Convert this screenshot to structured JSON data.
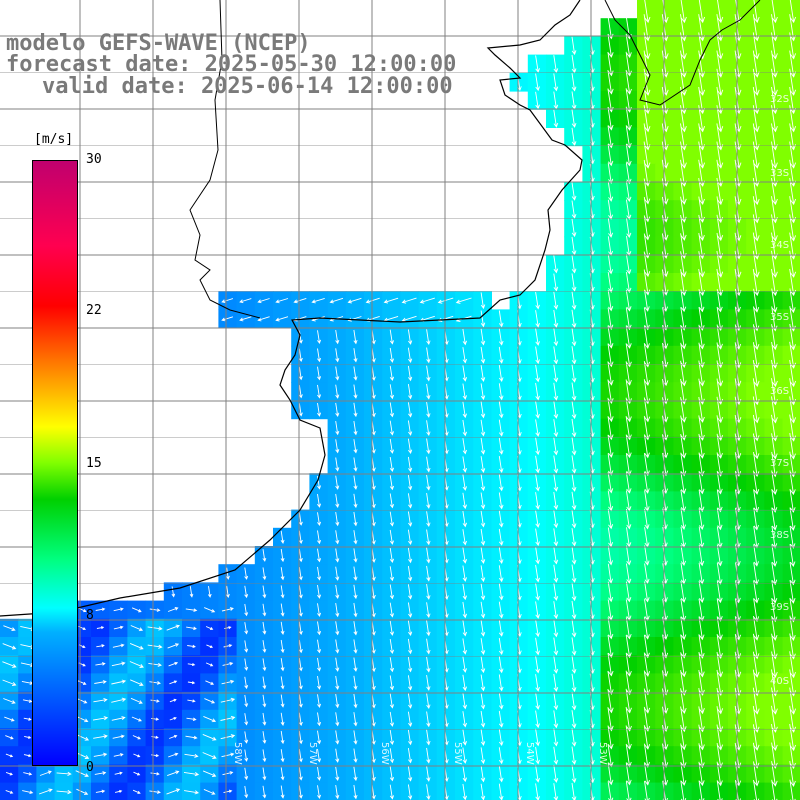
{
  "title": {
    "model": "modelo GEFS-WAVE (NCEP)",
    "forecast": "forecast date: 2025-05-30 12:00:00",
    "valid": "valid date: 2025-06-14 12:00:00"
  },
  "colorbar": {
    "unit": "[m/s]",
    "ticks": [
      "30",
      "22",
      "15",
      "8",
      "0"
    ]
  },
  "lat_labels": [
    "32S",
    "33S",
    "34S",
    "35S",
    "36S",
    "37S",
    "38S",
    "39S",
    "40S"
  ],
  "lon_labels": [
    "58W",
    "57W",
    "56W",
    "55W",
    "54W",
    "53W"
  ],
  "colors": {
    "land": "#ffffff",
    "coast": "#000000",
    "grid": "#808080",
    "arrow": "#ffffff",
    "title": "#7a7a7a"
  }
}
